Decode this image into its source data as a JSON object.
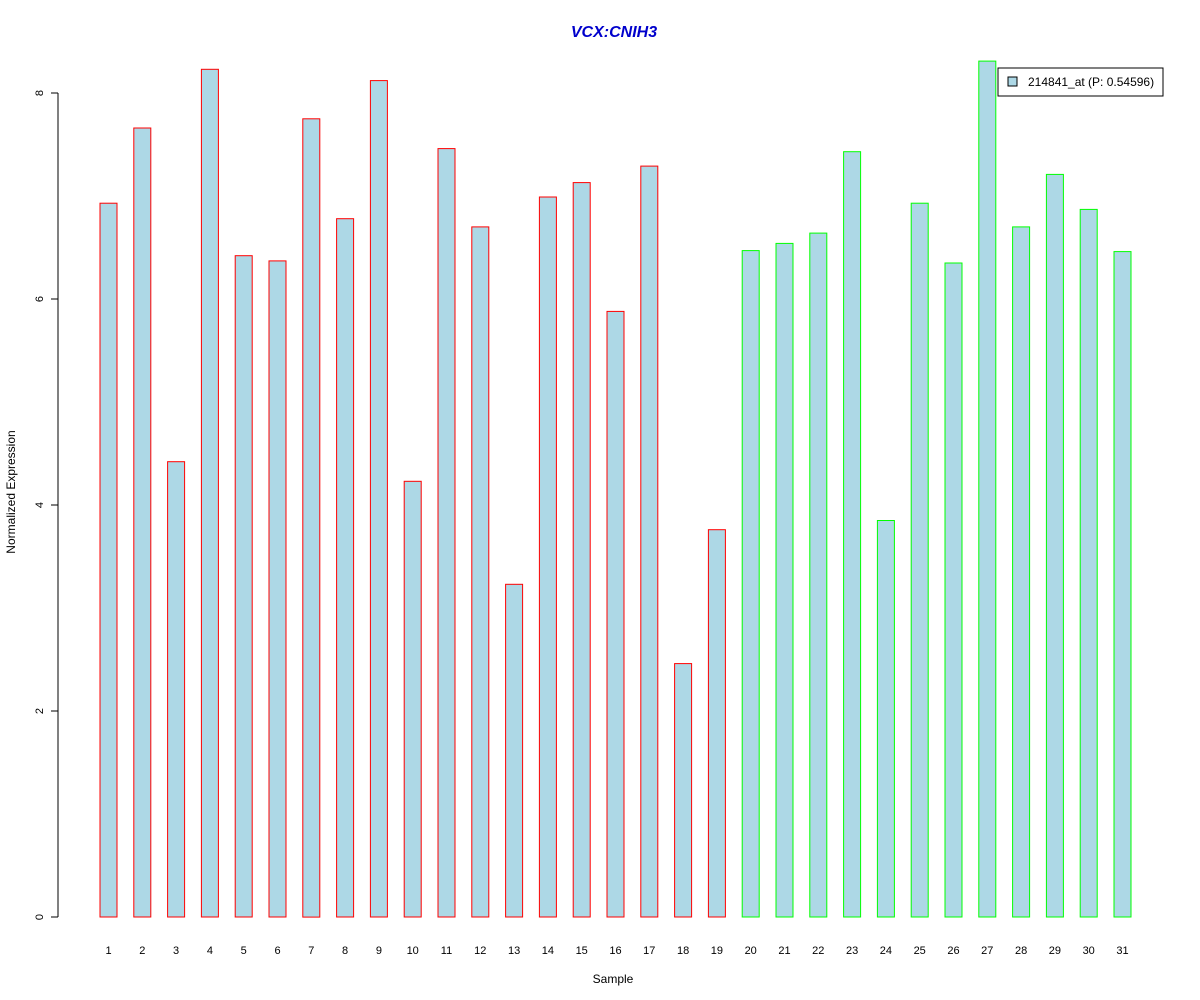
{
  "chart_data": {
    "type": "bar",
    "title": "VCX:CNIH3",
    "title_color": "#0000CC",
    "xlabel": "Sample",
    "ylabel": "Normalized Expression",
    "ylim": [
      0,
      8.3
    ],
    "yticks": [
      0,
      2,
      4,
      6,
      8
    ],
    "grid": false,
    "legend_position": "top-right",
    "fill_color": "#ADD8E6",
    "group_colors": [
      "#FF0000",
      "#00FF00"
    ],
    "categories": [
      "1",
      "2",
      "3",
      "4",
      "5",
      "6",
      "7",
      "8",
      "9",
      "10",
      "11",
      "12",
      "13",
      "14",
      "15",
      "16",
      "17",
      "18",
      "19",
      "20",
      "21",
      "22",
      "23",
      "24",
      "25",
      "26",
      "27",
      "28",
      "29",
      "30",
      "31"
    ],
    "series": [
      {
        "name": "214841_at (P: 0.54596)",
        "values": [
          6.93,
          7.66,
          4.42,
          8.23,
          6.42,
          6.37,
          7.75,
          6.78,
          8.12,
          4.23,
          7.46,
          6.7,
          3.23,
          6.99,
          7.13,
          5.88,
          7.29,
          2.46,
          3.76,
          6.47,
          6.54,
          6.64,
          7.43,
          3.85,
          6.93,
          6.35,
          8.31,
          6.7,
          7.21,
          6.87,
          6.46
        ]
      }
    ],
    "groups": [
      0,
      0,
      0,
      0,
      0,
      0,
      0,
      0,
      0,
      0,
      0,
      0,
      0,
      0,
      0,
      0,
      0,
      0,
      0,
      1,
      1,
      1,
      1,
      1,
      1,
      1,
      1,
      1,
      1,
      1,
      1
    ]
  }
}
